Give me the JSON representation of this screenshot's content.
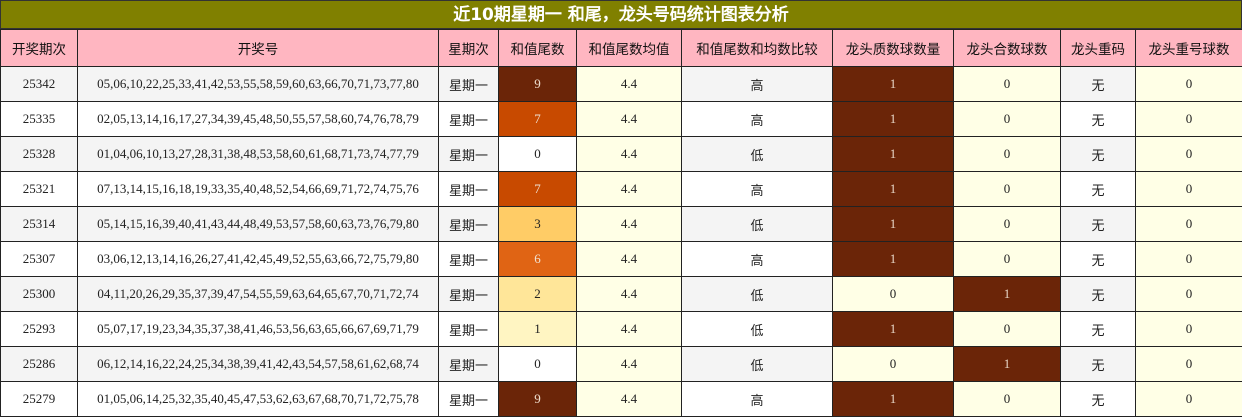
{
  "title": "近10期星期一 和尾，龙头号码统计图表分析",
  "headers": [
    "开奖期次",
    "开奖号",
    "星期次",
    "和值尾数",
    "和值尾数均值",
    "和值尾数和均数比较",
    "龙头质数球数量",
    "龙头合数球数",
    "龙头重码",
    "龙头重号球数"
  ],
  "colors": {
    "title_bg": "#808000",
    "header_bg": "#FFB6C1",
    "dark": "#6B2508",
    "light_yellow": "#FFFFE6",
    "tail_scale": {
      "0": "#FFFFFF",
      "1": "#FFF5C2",
      "2": "#FFE699",
      "3": "#FFCC66",
      "6": "#E06414",
      "7": "#C84A00",
      "9": "#6B2508"
    }
  },
  "rows": [
    {
      "issue": "25342",
      "numbers": "05,06,10,22,25,33,41,42,53,55,58,59,60,63,66,70,71,73,77,80",
      "weekday": "星期一",
      "tail": "9",
      "avg": "4.4",
      "cmp": "高",
      "prime": "1",
      "composite": "0",
      "repeat": "无",
      "repeat_count": "0"
    },
    {
      "issue": "25335",
      "numbers": "02,05,13,14,16,17,27,34,39,45,48,50,55,57,58,60,74,76,78,79",
      "weekday": "星期一",
      "tail": "7",
      "avg": "4.4",
      "cmp": "高",
      "prime": "1",
      "composite": "0",
      "repeat": "无",
      "repeat_count": "0"
    },
    {
      "issue": "25328",
      "numbers": "01,04,06,10,13,27,28,31,38,48,53,58,60,61,68,71,73,74,77,79",
      "weekday": "星期一",
      "tail": "0",
      "avg": "4.4",
      "cmp": "低",
      "prime": "1",
      "composite": "0",
      "repeat": "无",
      "repeat_count": "0"
    },
    {
      "issue": "25321",
      "numbers": "07,13,14,15,16,18,19,33,35,40,48,52,54,66,69,71,72,74,75,76",
      "weekday": "星期一",
      "tail": "7",
      "avg": "4.4",
      "cmp": "高",
      "prime": "1",
      "composite": "0",
      "repeat": "无",
      "repeat_count": "0"
    },
    {
      "issue": "25314",
      "numbers": "05,14,15,16,39,40,41,43,44,48,49,53,57,58,60,63,73,76,79,80",
      "weekday": "星期一",
      "tail": "3",
      "avg": "4.4",
      "cmp": "低",
      "prime": "1",
      "composite": "0",
      "repeat": "无",
      "repeat_count": "0"
    },
    {
      "issue": "25307",
      "numbers": "03,06,12,13,14,16,26,27,41,42,45,49,52,55,63,66,72,75,79,80",
      "weekday": "星期一",
      "tail": "6",
      "avg": "4.4",
      "cmp": "高",
      "prime": "1",
      "composite": "0",
      "repeat": "无",
      "repeat_count": "0"
    },
    {
      "issue": "25300",
      "numbers": "04,11,20,26,29,35,37,39,47,54,55,59,63,64,65,67,70,71,72,74",
      "weekday": "星期一",
      "tail": "2",
      "avg": "4.4",
      "cmp": "低",
      "prime": "0",
      "composite": "1",
      "repeat": "无",
      "repeat_count": "0"
    },
    {
      "issue": "25293",
      "numbers": "05,07,17,19,23,34,35,37,38,41,46,53,56,63,65,66,67,69,71,79",
      "weekday": "星期一",
      "tail": "1",
      "avg": "4.4",
      "cmp": "低",
      "prime": "1",
      "composite": "0",
      "repeat": "无",
      "repeat_count": "0"
    },
    {
      "issue": "25286",
      "numbers": "06,12,14,16,22,24,25,34,38,39,41,42,43,54,57,58,61,62,68,74",
      "weekday": "星期一",
      "tail": "0",
      "avg": "4.4",
      "cmp": "低",
      "prime": "0",
      "composite": "1",
      "repeat": "无",
      "repeat_count": "0"
    },
    {
      "issue": "25279",
      "numbers": "01,05,06,14,25,32,35,40,45,47,53,62,63,67,68,70,71,72,75,78",
      "weekday": "星期一",
      "tail": "9",
      "avg": "4.4",
      "cmp": "高",
      "prime": "1",
      "composite": "0",
      "repeat": "无",
      "repeat_count": "0"
    }
  ]
}
